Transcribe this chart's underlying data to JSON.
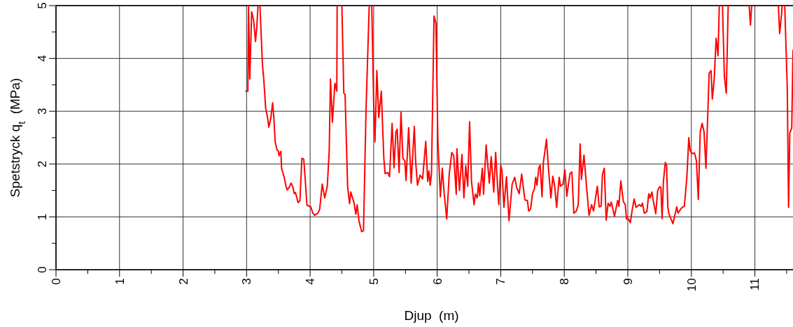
{
  "chart_data": {
    "type": "line",
    "xlabel": "Djup  (m)",
    "ylabel": "Spetstryck q$_{t}$  (MPa)",
    "xlim": [
      0,
      11.6
    ],
    "ylim": [
      0,
      5
    ],
    "xticks": [
      0,
      {
        "value": 0.5,
        "label": null
      },
      1,
      {
        "value": 1.5,
        "label": null
      },
      2,
      {
        "value": 2.5,
        "label": null
      },
      3,
      {
        "value": 3.5,
        "label": null
      },
      4,
      {
        "value": 4.5,
        "label": null
      },
      5,
      {
        "value": 5.5,
        "label": null
      },
      6,
      {
        "value": 6.5,
        "label": null
      },
      7,
      {
        "value": 7.5,
        "label": null
      },
      8,
      {
        "value": 8.5,
        "label": null
      },
      9,
      {
        "value": 9.5,
        "label": null
      },
      10,
      {
        "value": 10.5,
        "label": null
      },
      11,
      {
        "value": 11.5,
        "label": null
      }
    ],
    "yticks": [
      0,
      {
        "value": 0.5,
        "label": null
      },
      1,
      {
        "value": 1.5,
        "label": null
      },
      2,
      {
        "value": 2.5,
        "label": null
      },
      3,
      {
        "value": 3.5,
        "label": null
      },
      4,
      {
        "value": 4.5,
        "label": null
      },
      5
    ],
    "grid": true,
    "marker": "none",
    "line_style": "solid",
    "series": [
      {
        "color": "#ff0000",
        "x": [
          2.98,
          3.02,
          3.03,
          3.05,
          3.08,
          3.11,
          3.14,
          3.16,
          3.18,
          3.195,
          3.21,
          3.25,
          3.27,
          3.3,
          3.33,
          3.35,
          3.38,
          3.41,
          3.43,
          3.45,
          3.48,
          3.5,
          3.51,
          3.54,
          3.55,
          3.59,
          3.62,
          3.64,
          3.67,
          3.7,
          3.73,
          3.75,
          3.77,
          3.81,
          3.84,
          3.87,
          3.9,
          3.92,
          3.95,
          4.01,
          4.04,
          4.07,
          4.12,
          4.15,
          4.19,
          4.23,
          4.27,
          4.3,
          4.32,
          4.35,
          4.39,
          4.42,
          4.425,
          4.46,
          4.5,
          4.53,
          4.55,
          4.59,
          4.62,
          4.64,
          4.69,
          4.72,
          4.74,
          4.77,
          4.81,
          4.84,
          4.88,
          4.93,
          4.95,
          4.97,
          5.0,
          5.02,
          5.05,
          5.08,
          5.12,
          5.16,
          5.18,
          5.22,
          5.25,
          5.29,
          5.32,
          5.35,
          5.37,
          5.4,
          5.43,
          5.46,
          5.49,
          5.51,
          5.55,
          5.59,
          5.64,
          5.66,
          5.69,
          5.73,
          5.77,
          5.82,
          5.85,
          5.87,
          5.89,
          5.91,
          5.95,
          5.98,
          6.01,
          6.05,
          6.08,
          6.11,
          6.15,
          6.19,
          6.23,
          6.26,
          6.3,
          6.31,
          6.35,
          6.39,
          6.42,
          6.45,
          6.48,
          6.51,
          6.54,
          6.58,
          6.6,
          6.63,
          6.65,
          6.67,
          6.71,
          6.73,
          6.77,
          6.82,
          6.85,
          6.89,
          6.92,
          6.95,
          6.97,
          7.0,
          7.02,
          7.05,
          7.09,
          7.13,
          7.18,
          7.22,
          7.25,
          7.29,
          7.33,
          7.38,
          7.42,
          7.44,
          7.47,
          7.5,
          7.53,
          7.55,
          7.57,
          7.6,
          7.62,
          7.65,
          7.67,
          7.72,
          7.75,
          7.79,
          7.82,
          7.85,
          7.88,
          7.92,
          7.94,
          7.98,
          8.01,
          8.04,
          8.09,
          8.12,
          8.15,
          8.19,
          8.22,
          8.25,
          8.27,
          8.31,
          8.35,
          8.39,
          8.43,
          8.46,
          8.52,
          8.55,
          8.58,
          8.6,
          8.63,
          8.66,
          8.69,
          8.72,
          8.74,
          8.79,
          8.84,
          8.86,
          8.89,
          8.93,
          8.96,
          8.98,
          9.01,
          9.04,
          9.07,
          9.1,
          9.13,
          9.18,
          9.21,
          9.23,
          9.26,
          9.3,
          9.33,
          9.35,
          9.38,
          9.4,
          9.44,
          9.47,
          9.5,
          9.52,
          9.54,
          9.56,
          9.59,
          9.61,
          9.63,
          9.65,
          9.71,
          9.77,
          9.79,
          9.84,
          9.87,
          9.89,
          9.93,
          9.96,
          9.98,
          10.01,
          10.05,
          10.08,
          10.11,
          10.14,
          10.17,
          10.2,
          10.23,
          10.28,
          10.31,
          10.33,
          10.36,
          10.39,
          10.42,
          10.44,
          10.465,
          10.49,
          10.52,
          10.55,
          10.58,
          10.75,
          10.91,
          10.93,
          10.95,
          11.2,
          11.37,
          11.39,
          11.42,
          11.43,
          11.45,
          11.47,
          11.51,
          11.53,
          11.55,
          11.58,
          11.6
        ],
        "values": [
          3.38,
          3.38,
          5,
          3.61,
          4.88,
          4.73,
          4.32,
          4.58,
          5,
          null,
          5,
          3.87,
          3.61,
          3.06,
          2.88,
          2.7,
          2.86,
          3.16,
          2.86,
          2.42,
          2.26,
          2.25,
          2.16,
          2.24,
          1.92,
          1.76,
          1.58,
          1.51,
          1.56,
          1.64,
          1.56,
          1.44,
          1.46,
          1.27,
          1.31,
          2.11,
          2.09,
          1.76,
          1.22,
          1.19,
          1.08,
          1.03,
          1.07,
          1.14,
          1.62,
          1.36,
          1.58,
          2.24,
          3.61,
          2.79,
          3.53,
          3.38,
          5,
          null,
          5,
          3.34,
          3.32,
          1.58,
          1.25,
          1.47,
          1.27,
          1.05,
          1.23,
          0.92,
          0.72,
          0.74,
          3.03,
          5,
          null,
          5,
          3.16,
          2.42,
          3.77,
          2.88,
          3.38,
          2.11,
          1.82,
          1.84,
          1.76,
          2.77,
          1.93,
          2.61,
          2.66,
          1.84,
          2.98,
          2.11,
          2.06,
          1.69,
          2.69,
          1.64,
          2.71,
          2.06,
          1.6,
          1.79,
          1.72,
          2.43,
          1.67,
          1.87,
          1.6,
          1.82,
          4.8,
          4.67,
          2.46,
          1.38,
          1.92,
          1.44,
          0.96,
          1.82,
          2.22,
          2.16,
          1.43,
          2.29,
          1.5,
          2.18,
          1.36,
          1.97,
          1.58,
          2.8,
          1.67,
          1.23,
          1.43,
          1.36,
          1.64,
          1.4,
          1.92,
          1.43,
          2.36,
          1.64,
          2.14,
          1.47,
          2.22,
          1.58,
          1.23,
          1.97,
          1.87,
          1.18,
          1.76,
          0.93,
          1.62,
          1.75,
          1.56,
          1.44,
          1.81,
          1.32,
          1.31,
          1.11,
          1.15,
          1.44,
          1.53,
          1.75,
          1.6,
          1.93,
          1.98,
          1.38,
          2.02,
          2.47,
          1.93,
          1.36,
          1.77,
          1.58,
          1.18,
          1.75,
          1.58,
          1.62,
          1.89,
          1.39,
          1.82,
          1.85,
          1.07,
          1.11,
          1.23,
          2.38,
          1.71,
          2.17,
          1.58,
          1.03,
          1.23,
          1.11,
          1.58,
          1.19,
          1.2,
          1.8,
          1.92,
          0.94,
          1.26,
          1.2,
          1.28,
          1.01,
          1.31,
          1.2,
          1.68,
          1.29,
          1.23,
          0.96,
          0.96,
          0.89,
          1.14,
          1.34,
          1.18,
          1.23,
          1.2,
          1.26,
          1.07,
          1.1,
          1.44,
          1.36,
          1.47,
          1.31,
          1.06,
          1.5,
          1.57,
          1.56,
          0.97,
          1.67,
          2.03,
          1.98,
          1.18,
          1.05,
          0.87,
          1.19,
          1.07,
          1.16,
          1.19,
          1.2,
          1.76,
          2.5,
          2.26,
          2.2,
          2.21,
          2.06,
          1.33,
          2.61,
          2.77,
          2.61,
          1.92,
          3.72,
          3.77,
          3.23,
          3.61,
          4.38,
          4.05,
          5,
          null,
          5,
          3.65,
          3.34,
          5,
          null,
          5,
          4.63,
          5,
          null,
          5,
          4.47,
          4.84,
          5,
          null,
          5,
          3.43,
          1.18,
          2.59,
          2.68,
          4.16
        ]
      }
    ]
  }
}
